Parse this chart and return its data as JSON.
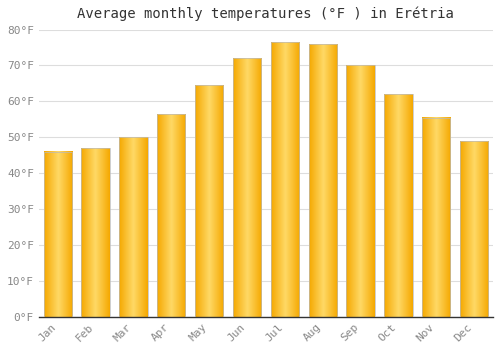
{
  "title": "Average monthly temperatures (°F ) in Erétria",
  "months": [
    "Jan",
    "Feb",
    "Mar",
    "Apr",
    "May",
    "Jun",
    "Jul",
    "Aug",
    "Sep",
    "Oct",
    "Nov",
    "Dec"
  ],
  "values": [
    46,
    47,
    50,
    56.5,
    64.5,
    72,
    76.5,
    76,
    70,
    62,
    55.5,
    49
  ],
  "bar_color_edge": "#F5A800",
  "bar_color_center": "#FFD966",
  "background_color": "#FFFFFF",
  "grid_color": "#DDDDDD",
  "ylim": [
    0,
    80
  ],
  "yticks": [
    0,
    10,
    20,
    30,
    40,
    50,
    60,
    70,
    80
  ],
  "ytick_labels": [
    "0°F",
    "10°F",
    "20°F",
    "30°F",
    "40°F",
    "50°F",
    "60°F",
    "70°F",
    "80°F"
  ],
  "title_fontsize": 10,
  "tick_fontsize": 8,
  "tick_color": "#888888",
  "bar_edge_color": "#BBBBBB",
  "bar_width": 0.75
}
